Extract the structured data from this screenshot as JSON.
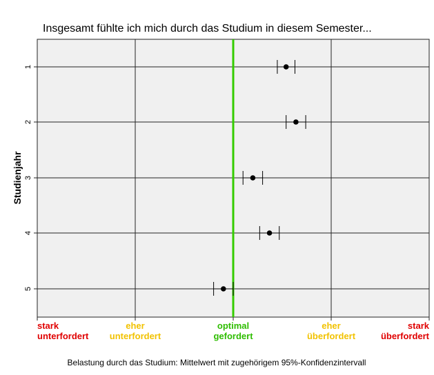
{
  "chart_data": {
    "type": "scatter",
    "title": "Insgesamt fühlte ich mich durch das Studium in diesem Semester...",
    "ylabel": "Studienjahr",
    "xlabel": "Belastung durch das Studium: Mittelwert mit zugehörigem 95%-Konfidenzintervall",
    "xlim": [
      1,
      5
    ],
    "categories": [
      "1",
      "2",
      "3",
      "4",
      "5"
    ],
    "means": [
      3.54,
      3.64,
      3.2,
      3.37,
      2.9
    ],
    "ci_lower": [
      3.45,
      3.54,
      3.1,
      3.27,
      2.8
    ],
    "ci_upper": [
      3.63,
      3.74,
      3.3,
      3.47,
      3.0
    ],
    "reference_line": {
      "x": 3,
      "color": "#33cc00"
    },
    "x_categories": [
      {
        "value": 1,
        "line1": "stark",
        "line2": "unterfordert",
        "color": "#e00000"
      },
      {
        "value": 2,
        "line1": "eher",
        "line2": "unterfordert",
        "color": "#f2c200"
      },
      {
        "value": 3,
        "line1": "optimal",
        "line2": "gefordert",
        "color": "#2ebd00"
      },
      {
        "value": 4,
        "line1": "eher",
        "line2": "überfordert",
        "color": "#f2c200"
      },
      {
        "value": 5,
        "line1": "stark",
        "line2": "überfordert",
        "color": "#e00000"
      }
    ],
    "grid": true
  }
}
